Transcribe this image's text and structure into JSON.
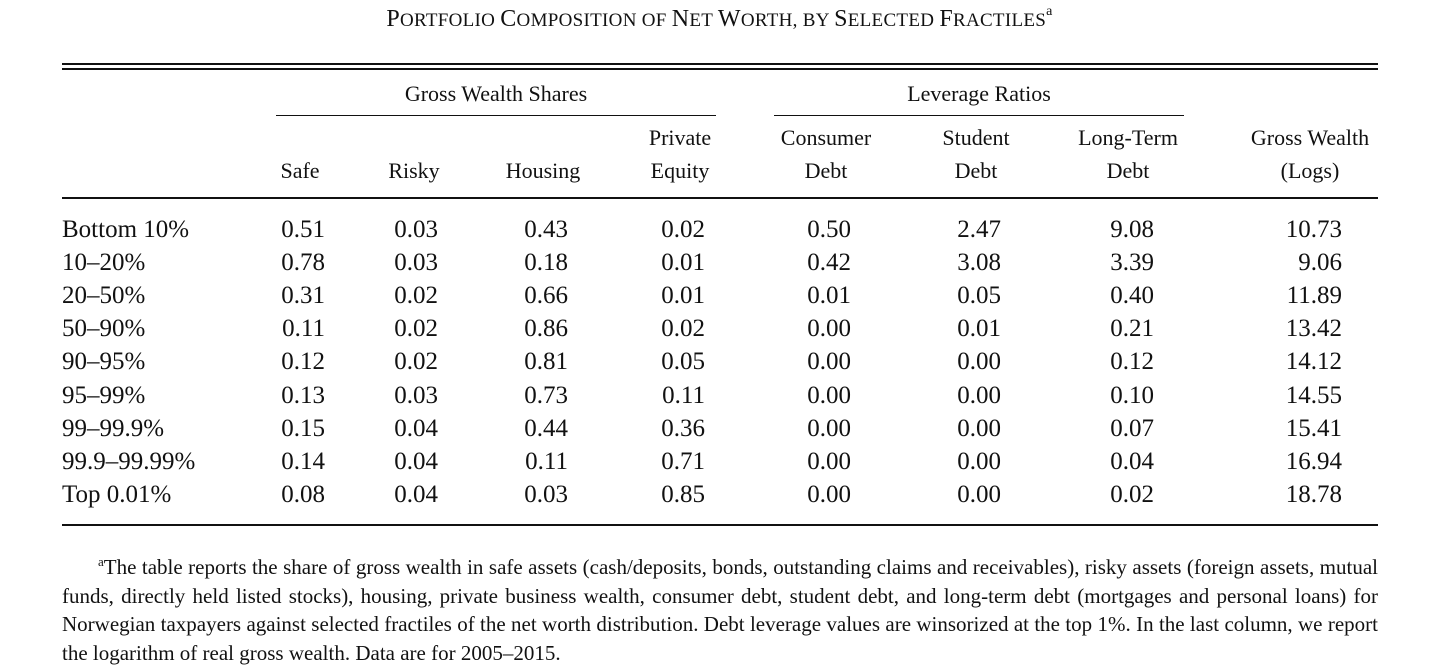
{
  "table": {
    "title": "Portfolio Composition of Net Worth, by Selected Fractiles",
    "title_parts": [
      {
        "big": "P",
        "small": "ORTFOLIO "
      },
      {
        "big": "C",
        "small": "OMPOSITION OF "
      },
      {
        "big": "N",
        "small": "ET "
      },
      {
        "big": "W",
        "small": "ORTH, BY "
      },
      {
        "big": "S",
        "small": "ELECTED "
      },
      {
        "big": "F",
        "small": "RACTILES"
      }
    ],
    "title_mark": "a",
    "groups": {
      "gross_wealth_shares": "Gross Wealth Shares",
      "leverage_ratios": "Leverage Ratios"
    },
    "columns": [
      {
        "line1": "",
        "line2": "Safe"
      },
      {
        "line1": "",
        "line2": "Risky"
      },
      {
        "line1": "",
        "line2": "Housing"
      },
      {
        "line1": "Private",
        "line2": "Equity"
      },
      {
        "line1": "Consumer",
        "line2": "Debt"
      },
      {
        "line1": "Student",
        "line2": "Debt"
      },
      {
        "line1": "Long-Term",
        "line2": "Debt"
      },
      {
        "line1": "Gross Wealth",
        "line2": "(Logs)"
      }
    ],
    "rows": [
      {
        "label": "Bottom 10%",
        "values": [
          "0.51",
          "0.03",
          "0.43",
          "0.02",
          "0.50",
          "2.47",
          "9.08",
          "10.73"
        ]
      },
      {
        "label": "10–20%",
        "values": [
          "0.78",
          "0.03",
          "0.18",
          "0.01",
          "0.42",
          "3.08",
          "3.39",
          "9.06"
        ]
      },
      {
        "label": "20–50%",
        "values": [
          "0.31",
          "0.02",
          "0.66",
          "0.01",
          "0.01",
          "0.05",
          "0.40",
          "11.89"
        ]
      },
      {
        "label": "50–90%",
        "values": [
          "0.11",
          "0.02",
          "0.86",
          "0.02",
          "0.00",
          "0.01",
          "0.21",
          "13.42"
        ]
      },
      {
        "label": "90–95%",
        "values": [
          "0.12",
          "0.02",
          "0.81",
          "0.05",
          "0.00",
          "0.00",
          "0.12",
          "14.12"
        ]
      },
      {
        "label": "95–99%",
        "values": [
          "0.13",
          "0.03",
          "0.73",
          "0.11",
          "0.00",
          "0.00",
          "0.10",
          "14.55"
        ]
      },
      {
        "label": "99–99.9%",
        "values": [
          "0.15",
          "0.04",
          "0.44",
          "0.36",
          "0.00",
          "0.00",
          "0.07",
          "15.41"
        ]
      },
      {
        "label": "99.9–99.99%",
        "values": [
          "0.14",
          "0.04",
          "0.11",
          "0.71",
          "0.00",
          "0.00",
          "0.04",
          "16.94"
        ]
      },
      {
        "label": "Top 0.01%",
        "values": [
          "0.08",
          "0.04",
          "0.03",
          "0.85",
          "0.00",
          "0.00",
          "0.02",
          "18.78"
        ]
      }
    ],
    "footnote_mark": "a",
    "footnote": "The table reports the share of gross wealth in safe assets (cash/deposits, bonds, outstanding claims and receivables), risky assets (foreign assets, mutual funds, directly held listed stocks), housing, private business wealth, consumer debt, student debt, and long-term debt (mortgages and personal loans) for Norwegian taxpayers against selected fractiles of the net worth distribution. Debt leverage values are winsorized at the top 1%. In the last column, we report the logarithm of real gross wealth. Data are for 2005–2015."
  }
}
